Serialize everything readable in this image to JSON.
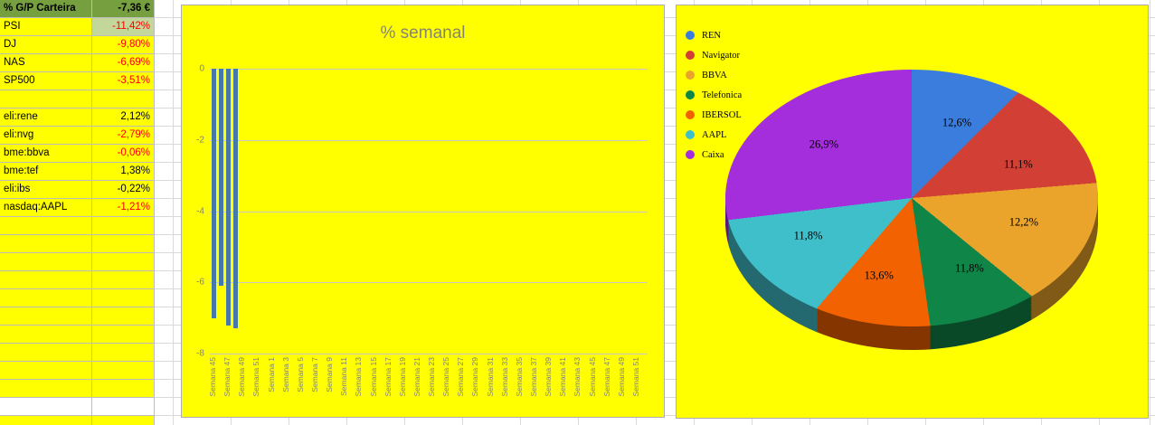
{
  "spreadsheet": {
    "summary": {
      "label": "% G/P Carteira",
      "value": "-7,36 €",
      "bg": "#76A03F"
    },
    "rows": [
      {
        "label": "PSI",
        "value": "-11,42%",
        "value_color": "#FF0000",
        "value_bg": "#C4D79B"
      },
      {
        "label": "DJ",
        "value": "-9,80%",
        "value_color": "#FF0000"
      },
      {
        "label": "NAS",
        "value": "-6,69%",
        "value_color": "#FF0000"
      },
      {
        "label": "SP500",
        "value": "-3,51%",
        "value_color": "#FF0000"
      },
      {
        "label": "",
        "value": ""
      },
      {
        "label": "eli:rene",
        "value": "2,12%",
        "value_color": "#000000"
      },
      {
        "label": "eli:nvg",
        "value": "-2,79%",
        "value_color": "#FF0000"
      },
      {
        "label": "bme:bbva",
        "value": "-0,06%",
        "value_color": "#FF0000"
      },
      {
        "label": "bme:tef",
        "value": "1,38%",
        "value_color": "#000000"
      },
      {
        "label": "eli:ibs",
        "value": "-0,22%",
        "value_color": "#000000"
      },
      {
        "label": "nasdaq:AAPL",
        "value": "-1,21%",
        "value_color": "#FF0000"
      }
    ],
    "empty_yellow_rows": 10,
    "cell_yellow": "#FFFF00",
    "cell_white": "#FFFFFF"
  },
  "chart_data": [
    {
      "type": "bar",
      "title": "% semanal",
      "xlabel": "",
      "ylabel": "",
      "ylim": [
        -8,
        0
      ],
      "y_ticks": [
        0,
        -2,
        -4,
        -6,
        -8
      ],
      "grid": true,
      "background": "#FFFF00",
      "bar_color": "#4579A9",
      "x_tick_labels": [
        "Semana 45",
        "Semana 47",
        "Semana 49",
        "Semana 51",
        "Semana 1",
        "Semana 3",
        "Semana 5",
        "Semana 7",
        "Semana 9",
        "Semana 11",
        "Semana 13",
        "Semana 15",
        "Semana 17",
        "Semana 19",
        "Semana 21",
        "Semana 23",
        "Semana 25",
        "Semana 27",
        "Semana 29",
        "Semana 31",
        "Semana 33",
        "Semana 35",
        "Semana 37",
        "Semana 39",
        "Semana 41",
        "Semana 43",
        "Semana 45",
        "Semana 47",
        "Semana 49",
        "Semana 51"
      ],
      "bars": [
        {
          "x": "Semana 45",
          "value": -7.0
        },
        {
          "x": "Semana 46",
          "value": -6.1
        },
        {
          "x": "Semana 47",
          "value": -7.2
        },
        {
          "x": "Semana 48",
          "value": -7.3
        }
      ]
    },
    {
      "type": "pie",
      "effect": "3d",
      "background": "#FFFF00",
      "legend_position": "top-left",
      "start_angle_deg": 0,
      "slices": [
        {
          "label": "REN",
          "value": 12.6,
          "display": "12,6%",
          "color": "#3B7DDD"
        },
        {
          "label": "Navigator",
          "value": 11.1,
          "display": "11,1%",
          "color": "#D23F34"
        },
        {
          "label": "BBVA",
          "value": 12.2,
          "display": "12,2%",
          "color": "#EBA42B"
        },
        {
          "label": "Telefonica",
          "value": 11.8,
          "display": "11,8%",
          "color": "#108548"
        },
        {
          "label": "IBERSOL",
          "value": 13.6,
          "display": "13,6%",
          "color": "#F26200"
        },
        {
          "label": "AAPL",
          "value": 11.8,
          "display": "11,8%",
          "color": "#3FBFC9"
        },
        {
          "label": "Caixa",
          "value": 26.9,
          "display": "26,9%",
          "color": "#A42EDB"
        }
      ]
    }
  ]
}
